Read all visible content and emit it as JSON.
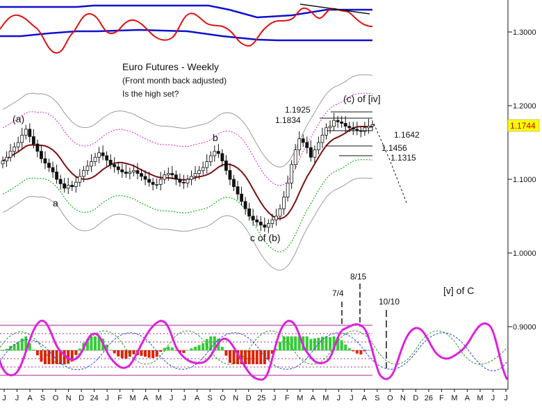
{
  "chart_data": {
    "type": "candlestick",
    "title": "Euro Futures - Weekly",
    "subtitle": "(Front month back adjusted)",
    "question": "Is the high set?",
    "current_price": "1.1744",
    "colors": {
      "ma": "#7b1010",
      "upper_dotted_band": "#e020c0",
      "lower_dotted_band": "#10b010",
      "outer_band": "#9a9a9a",
      "oscillator_red": "#e01010",
      "oscillator_blue": "#1010d0",
      "cycle_magenta": "#dd22dd",
      "histogram_up": "#33cc33",
      "histogram_down": "#dd2200",
      "price_label_bg": "#ffff00",
      "price_label_text": "#c00000"
    },
    "x_axis": {
      "labels": [
        "J",
        "J",
        "A",
        "S",
        "O",
        "N",
        "D",
        "24",
        "J",
        "F",
        "M",
        "A",
        "M",
        "J",
        "J",
        "A",
        "S",
        "O",
        "N",
        "D",
        "25",
        "J",
        "F",
        "M",
        "A",
        "M",
        "J",
        "J",
        "A",
        "S",
        "O",
        "N",
        "D",
        "26",
        "F",
        "M",
        "A",
        "M",
        "J",
        "J"
      ]
    },
    "y_axis": {
      "labels": [
        "1.3000",
        "1.2000",
        "1.1000",
        "1.0000",
        "0.9000"
      ],
      "values": [
        1.3,
        1.2,
        1.1,
        1.0,
        0.9
      ]
    },
    "wave_labels": [
      {
        "text": "(a)",
        "near": 1.183
      },
      {
        "text": "a",
        "near": 1.062
      },
      {
        "text": "b",
        "near": 1.152
      },
      {
        "text": "c of (b)",
        "near": 1.02
      },
      {
        "text": "(c) of [iv]",
        "near": 1.2
      },
      {
        "text": "[v] of C",
        "near": 0.9
      }
    ],
    "price_levels": [
      {
        "label": "1.1925",
        "value": 1.1925
      },
      {
        "label": "1.1834",
        "value": 1.1834
      },
      {
        "label": "1.1642",
        "value": 1.1642
      },
      {
        "label": "1.1456",
        "value": 1.1456
      },
      {
        "label": "1.1315",
        "value": 1.1315
      }
    ],
    "cycle_dates": [
      {
        "label": "7/4"
      },
      {
        "label": "8/15"
      },
      {
        "label": "10/10"
      }
    ],
    "weekly_close": [
      1.125,
      1.13,
      1.138,
      1.144,
      1.15,
      1.16,
      1.168,
      1.158,
      1.148,
      1.138,
      1.128,
      1.122,
      1.116,
      1.11,
      1.1,
      1.094,
      1.088,
      1.092,
      1.09,
      1.096,
      1.104,
      1.112,
      1.118,
      1.124,
      1.13,
      1.136,
      1.132,
      1.126,
      1.12,
      1.117,
      1.113,
      1.11,
      1.108,
      1.11,
      1.112,
      1.108,
      1.104,
      1.1,
      1.096,
      1.093,
      1.093,
      1.1,
      1.106,
      1.108,
      1.106,
      1.1,
      1.096,
      1.095,
      1.1,
      1.104,
      1.108,
      1.112,
      1.116,
      1.124,
      1.132,
      1.138,
      1.135,
      1.125,
      1.112,
      1.1,
      1.09,
      1.08,
      1.07,
      1.06,
      1.05,
      1.045,
      1.042,
      1.038,
      1.035,
      1.04,
      1.045,
      1.05,
      1.06,
      1.076,
      1.095,
      1.12,
      1.14,
      1.155,
      1.15,
      1.143,
      1.13,
      1.14,
      1.15,
      1.16,
      1.17,
      1.172,
      1.18,
      1.178,
      1.176,
      1.172,
      1.17,
      1.168,
      1.166,
      1.165,
      1.17,
      1.172,
      1.174
    ]
  }
}
